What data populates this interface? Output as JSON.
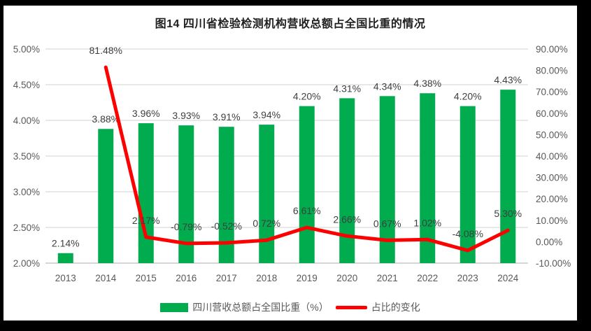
{
  "title": "图14  四川省检验检测机构营收总额占全国比重的情况",
  "colors": {
    "bar": "#00AC4E",
    "line": "#FF0000",
    "grid": "#D9D9D9",
    "axis_line": "#BFBFBF",
    "axis_text": "#595959",
    "label_text": "#3F3F3F",
    "background": "#FFFFFF",
    "frame": "#000000"
  },
  "chart_data": {
    "type": "combo-bar-line",
    "title": "图14  四川省检验检测机构营收总额占全国比重的情况",
    "categories": [
      "2013",
      "2014",
      "2015",
      "2016",
      "2017",
      "2018",
      "2019",
      "2020",
      "2021",
      "2022",
      "2023",
      "2024"
    ],
    "series": [
      {
        "name": "四川营收总额占全国比重（%）",
        "type": "bar",
        "axis": "left",
        "start_index": 0,
        "values": [
          2.14,
          3.88,
          3.96,
          3.93,
          3.91,
          3.94,
          4.2,
          4.31,
          4.34,
          4.38,
          4.2,
          4.43
        ],
        "labels": [
          "2.14%",
          "3.88%",
          "3.96%",
          "3.93%",
          "3.91%",
          "3.94%",
          "4.20%",
          "4.31%",
          "4.34%",
          "4.38%",
          "4.20%",
          "4.43%"
        ]
      },
      {
        "name": "占比的变化",
        "type": "line",
        "axis": "right",
        "start_index": 1,
        "values": [
          81.48,
          2.17,
          -0.79,
          -0.52,
          0.72,
          6.61,
          2.66,
          0.67,
          1.02,
          -4.08,
          5.3
        ],
        "labels": [
          "81.48%",
          "2.17%",
          "-0.79%",
          "-0.52%",
          "0.72%",
          "6.61%",
          "2.66%",
          "0.67%",
          "1.02%",
          "-4.08%",
          "5.30%"
        ]
      }
    ],
    "left_axis": {
      "min": 2.0,
      "max": 5.0,
      "step": 0.5,
      "tick_labels": [
        "5.00%",
        "4.50%",
        "4.00%",
        "3.50%",
        "3.00%",
        "2.50%",
        "2.00%"
      ]
    },
    "right_axis": {
      "min": -10,
      "max": 90,
      "step": 10,
      "tick_labels": [
        "90.00%",
        "80.00%",
        "70.00%",
        "60.00%",
        "50.00%",
        "40.00%",
        "30.00%",
        "20.00%",
        "10.00%",
        "0.00%",
        "-10.00%"
      ]
    },
    "grid": true,
    "legend_position": "bottom"
  }
}
